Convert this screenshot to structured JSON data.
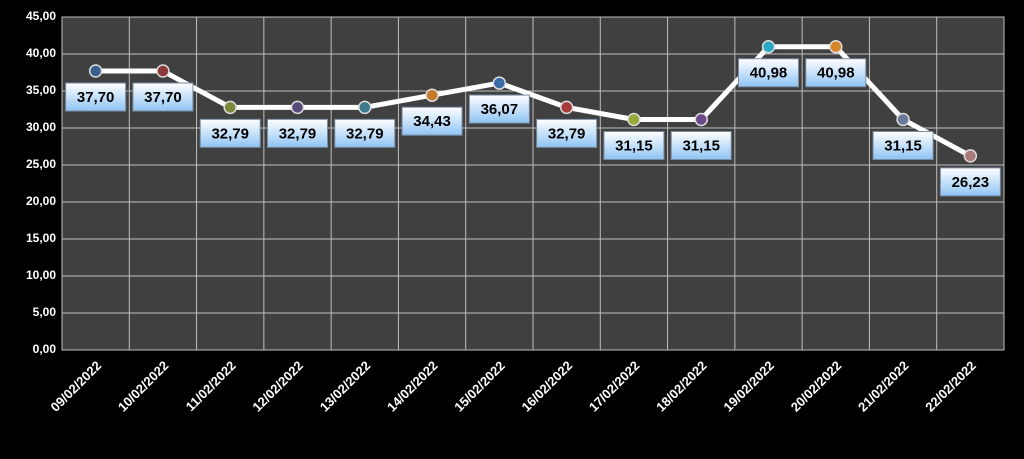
{
  "chart_data": {
    "type": "line",
    "categories": [
      "09/02/2022",
      "10/02/2022",
      "11/02/2022",
      "12/02/2022",
      "13/02/2022",
      "14/02/2022",
      "15/02/2022",
      "16/02/2022",
      "17/02/2022",
      "18/02/2022",
      "19/02/2022",
      "20/02/2022",
      "21/02/2022",
      "22/02/2022"
    ],
    "series": [
      {
        "color": "#ffffff",
        "values": [
          37.7,
          37.7,
          32.79,
          32.79,
          32.79,
          34.43,
          36.07,
          32.79,
          31.15,
          31.15,
          40.98,
          40.98,
          31.15,
          26.23
        ],
        "value_labels": [
          "37,70",
          "37,70",
          "32,79",
          "32,79",
          "32,79",
          "34,43",
          "36,07",
          "32,79",
          "31,15",
          "31,15",
          "40,98",
          "40,98",
          "31,15",
          "26,23"
        ],
        "marker_colors": [
          "#3a5f8a",
          "#8a3a3a",
          "#7a8a3a",
          "#5a4a7a",
          "#3a7a8a",
          "#c87a2a",
          "#3a6aa8",
          "#a83a3a",
          "#9aa83a",
          "#6a4a8a",
          "#2aa8c8",
          "#d8862a",
          "#6a7a9a",
          "#a87a7a"
        ]
      }
    ],
    "ylim": [
      0,
      45
    ],
    "yticks": [
      {
        "value": 0,
        "label": "0,00"
      },
      {
        "value": 5,
        "label": "5,00"
      },
      {
        "value": 10,
        "label": "10,00"
      },
      {
        "value": 15,
        "label": "15,00"
      },
      {
        "value": 20,
        "label": "20,00"
      },
      {
        "value": 25,
        "label": "25,00"
      },
      {
        "value": 30,
        "label": "30,00"
      },
      {
        "value": 35,
        "label": "35,00"
      },
      {
        "value": 40,
        "label": "40,00"
      },
      {
        "value": 45,
        "label": "45,00"
      }
    ],
    "grid": true
  }
}
